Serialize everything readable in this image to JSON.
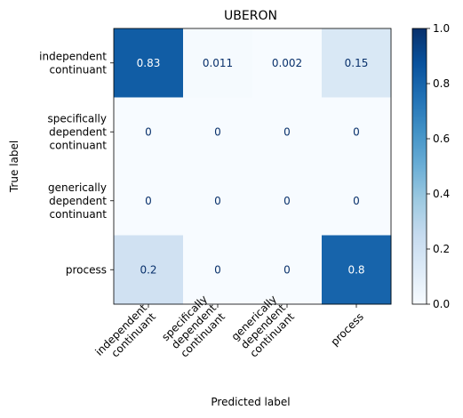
{
  "chart_data": {
    "type": "heatmap",
    "title": "UBERON",
    "xlabel": "Predicted label",
    "ylabel": "True label",
    "x_categories": [
      [
        "independent",
        "continuant"
      ],
      [
        "specifically",
        "dependent",
        "continuant"
      ],
      [
        "generically",
        "dependent",
        "continuant"
      ],
      [
        "process"
      ]
    ],
    "y_categories": [
      [
        "independent",
        "continuant"
      ],
      [
        "specifically",
        "dependent",
        "continuant"
      ],
      [
        "generically",
        "dependent",
        "continuant"
      ],
      [
        "process"
      ]
    ],
    "values": [
      [
        0.83,
        0.011,
        0.002,
        0.15
      ],
      [
        0,
        0,
        0,
        0
      ],
      [
        0,
        0,
        0,
        0
      ],
      [
        0.2,
        0,
        0,
        0.8
      ]
    ],
    "value_labels": [
      [
        "0.83",
        "0.011",
        "0.002",
        "0.15"
      ],
      [
        "0",
        "0",
        "0",
        "0"
      ],
      [
        "0",
        "0",
        "0",
        "0"
      ],
      [
        "0.2",
        "0",
        "0",
        "0.8"
      ]
    ],
    "colormap": "Blues",
    "colorbar": {
      "range": [
        0.0,
        1.0
      ],
      "ticks": [
        0.0,
        0.2,
        0.4,
        0.6,
        0.8,
        1.0
      ],
      "tick_labels": [
        "0.0",
        "0.2",
        "0.4",
        "0.6",
        "0.8",
        "1.0"
      ]
    },
    "grid": false,
    "colors": {
      "light_text": "#ffffff",
      "dark_text": "#08306b"
    }
  }
}
